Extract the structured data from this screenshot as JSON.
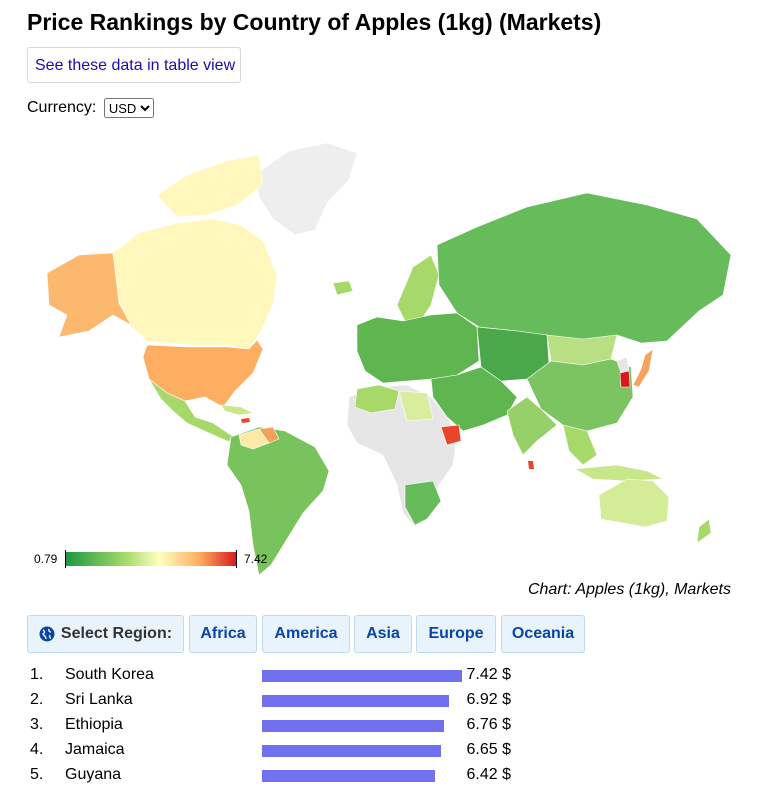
{
  "page": {
    "title": "Price Rankings by Country of Apples (1kg) (Markets)",
    "table_link": "See these data in table view",
    "currency_label": "Currency:",
    "currency_value": "USD",
    "caption": "Chart: Apples (1kg), Markets"
  },
  "legend": {
    "min": "0.79",
    "max": "7.42",
    "colors": [
      "#1a9641",
      "#a6d96a",
      "#ffffbf",
      "#fdae61",
      "#d7191c"
    ]
  },
  "regions": {
    "select_label": "Select Region:",
    "buttons": [
      "Africa",
      "America",
      "Asia",
      "Europe",
      "Oceania"
    ]
  },
  "rankings": [
    {
      "rank": "1.",
      "country": "South Korea",
      "value": 7.42,
      "display": "7.42 $"
    },
    {
      "rank": "2.",
      "country": "Sri Lanka",
      "value": 6.92,
      "display": "6.92 $"
    },
    {
      "rank": "3.",
      "country": "Ethiopia",
      "value": 6.76,
      "display": "6.76 $"
    },
    {
      "rank": "4.",
      "country": "Jamaica",
      "value": 6.65,
      "display": "6.65 $"
    },
    {
      "rank": "5.",
      "country": "Guyana",
      "value": 6.42,
      "display": "6.42 $"
    }
  ],
  "map_colors": {
    "no_data": "#e6e6e6",
    "greenland": "#eeeeee",
    "canada": "#fff7bc",
    "usa": "#fdae61",
    "alaska": "#fdb870",
    "russia": "#66bb5a",
    "europe": "#5fb651",
    "south_korea": "#d7191c",
    "ethiopia": "#e8462a",
    "australia": "#d4ec98",
    "south_america": "#78c35c",
    "mongolia": "#b8e083",
    "japan": "#f8a35d"
  }
}
